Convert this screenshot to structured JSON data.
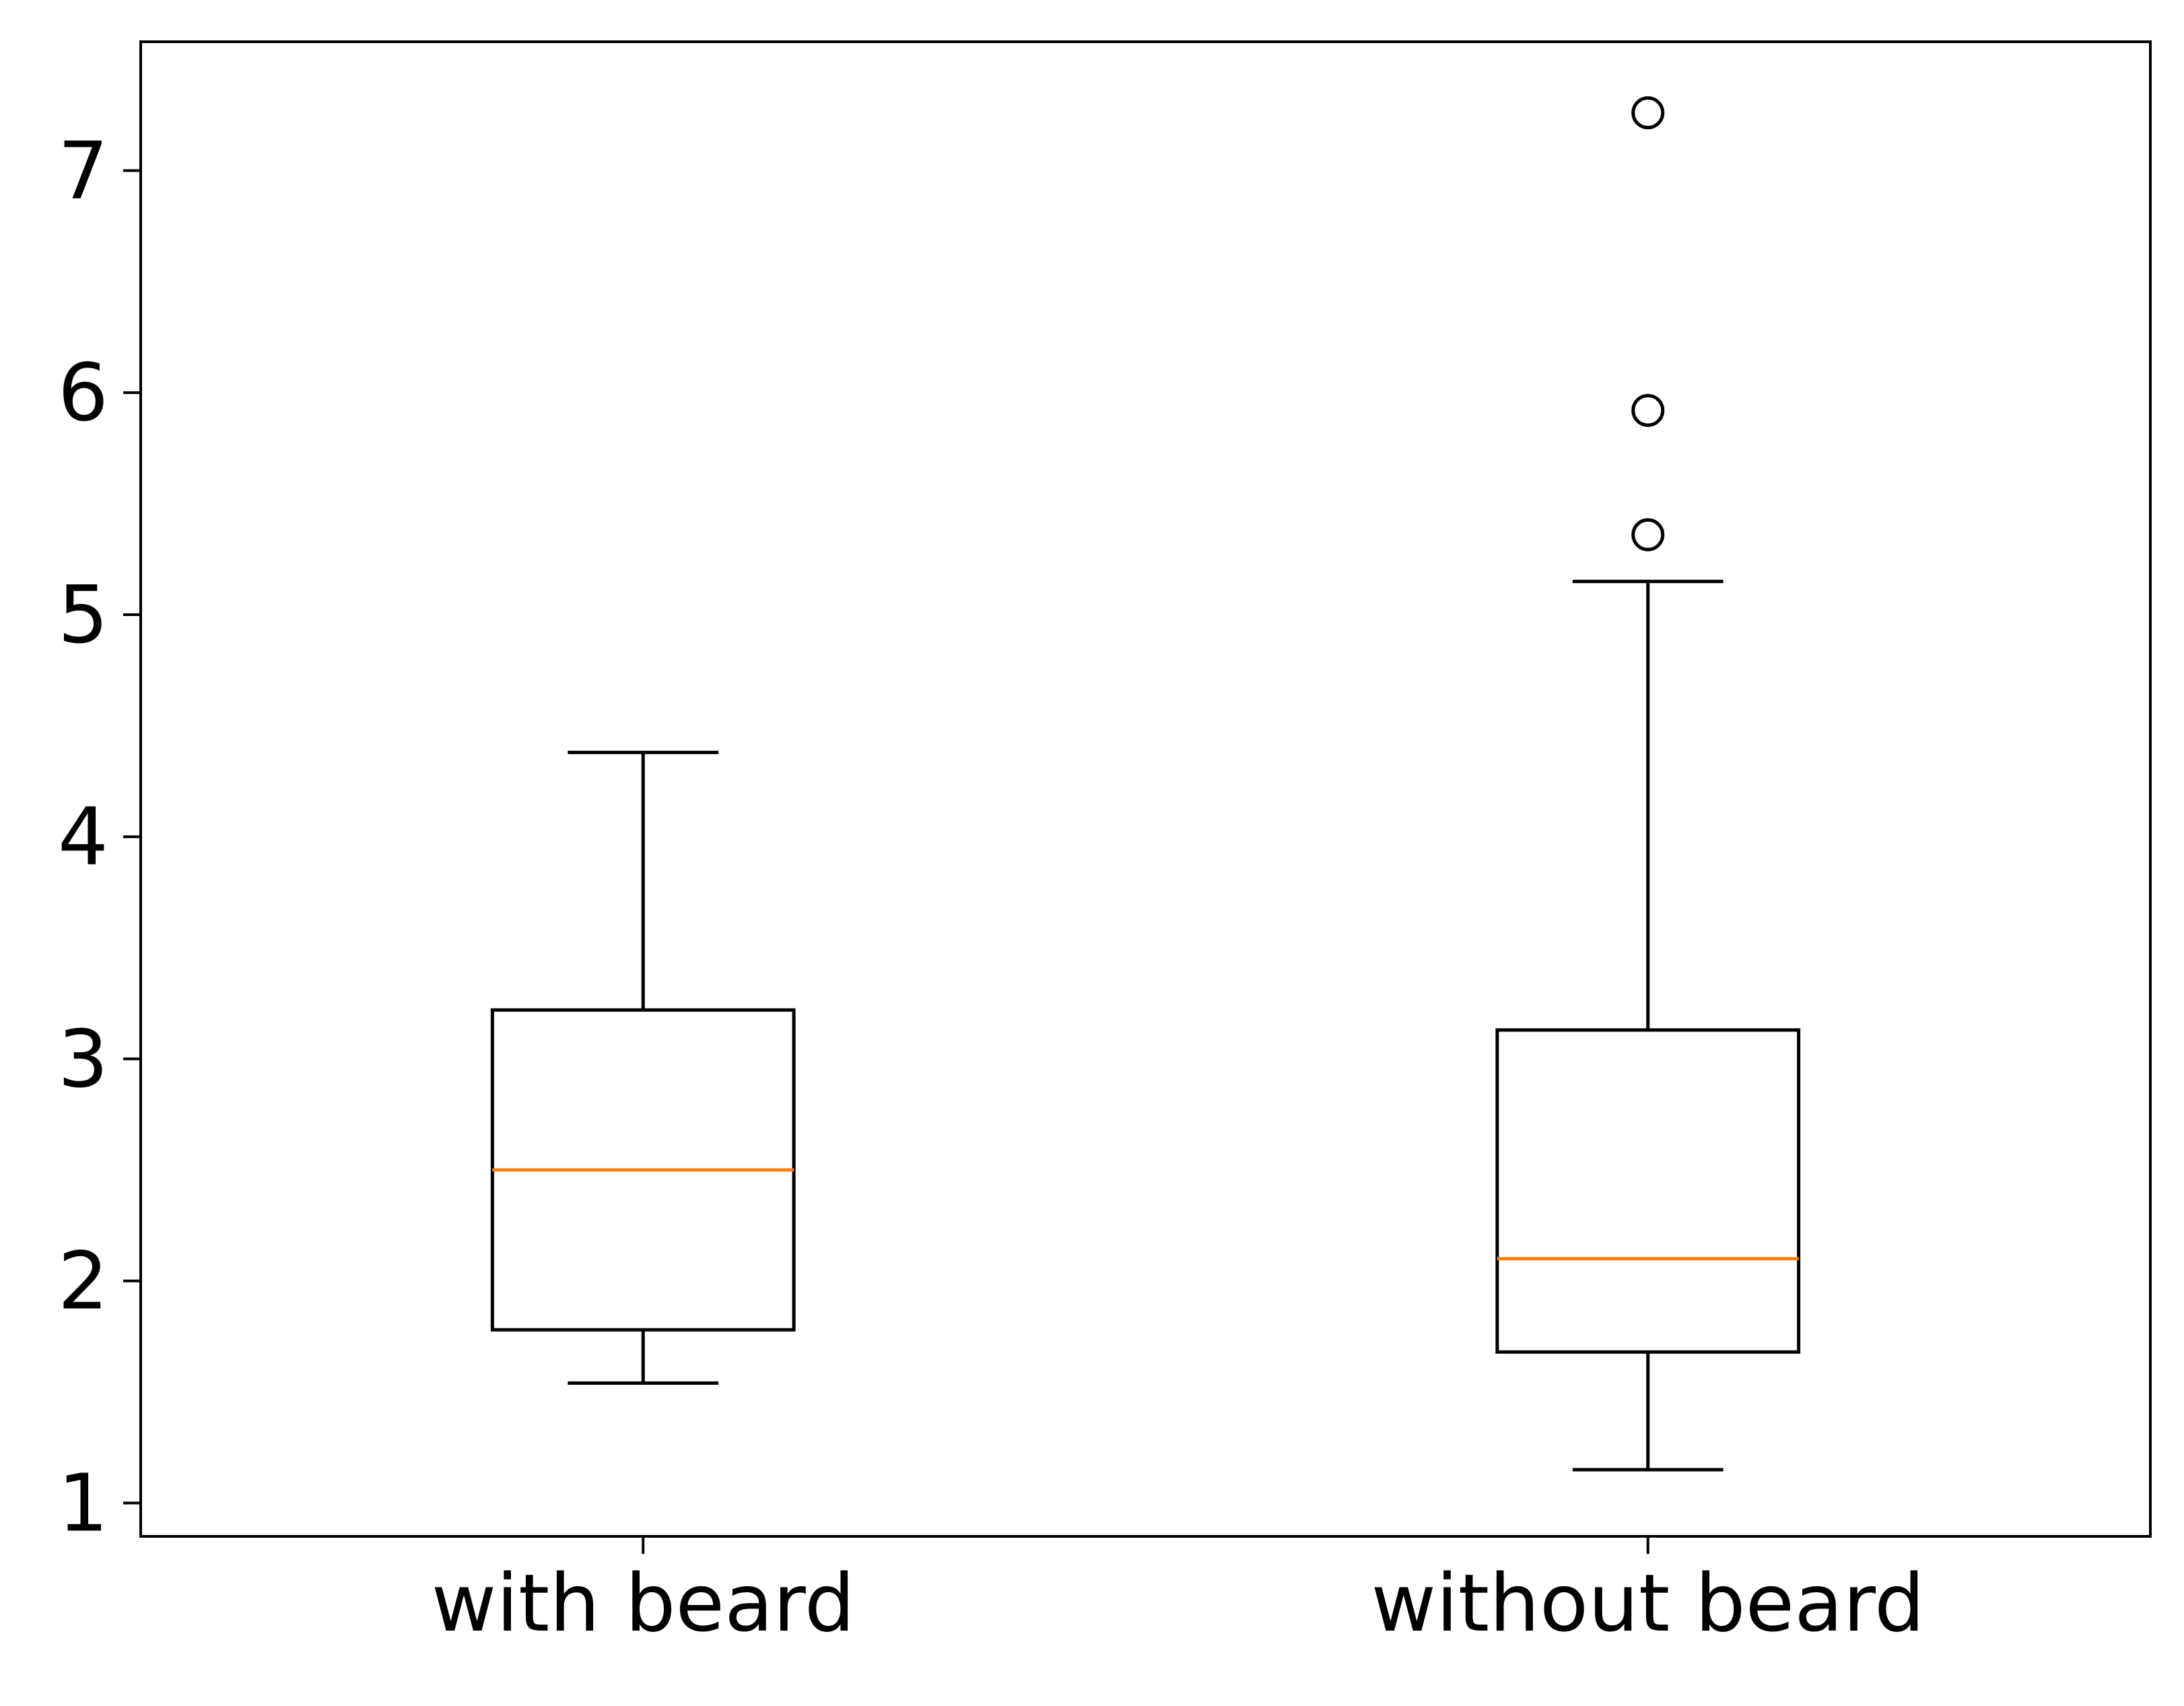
{
  "chart_data": {
    "type": "boxplot",
    "title": "",
    "xlabel": "",
    "ylabel": "",
    "categories": [
      "with beard",
      "without beard"
    ],
    "boxes": [
      {
        "category": "with beard",
        "whisker_low": 1.54,
        "q1": 1.78,
        "median": 2.5,
        "q3": 3.22,
        "whisker_high": 4.38,
        "outliers": []
      },
      {
        "category": "without beard",
        "whisker_low": 1.15,
        "q1": 1.68,
        "median": 2.1,
        "q3": 3.13,
        "whisker_high": 5.15,
        "outliers": [
          5.36,
          5.92,
          7.26
        ]
      }
    ],
    "ylim": [
      0.85,
      7.58
    ],
    "yticks": [
      "1",
      "2",
      "3",
      "4",
      "5",
      "6",
      "7"
    ],
    "grid": false,
    "colors": {
      "box": "#000000",
      "median": "#ff7f0e",
      "background": "#ffffff"
    }
  }
}
